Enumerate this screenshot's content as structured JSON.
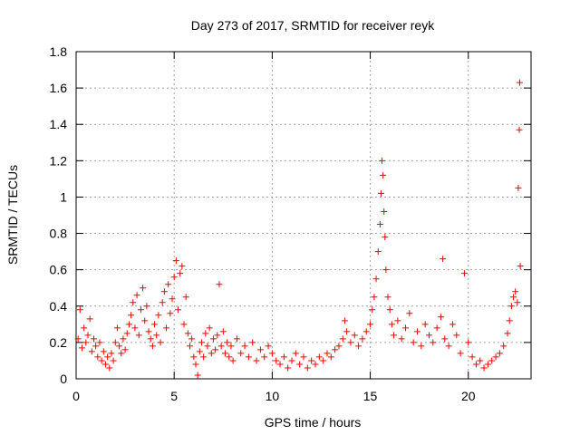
{
  "chart_data": {
    "type": "scatter",
    "title": "Day 273 of 2017, SRMTID for receiver reyk",
    "xlabel": "GPS time / hours",
    "ylabel": "SRMTID / TECUs",
    "xlim": [
      0,
      23.2
    ],
    "ylim": [
      0,
      1.8
    ],
    "x_ticks": [
      0,
      5,
      10,
      15,
      20
    ],
    "y_ticks": [
      0,
      0.2,
      0.4,
      0.6,
      0.8,
      1,
      1.2,
      1.4,
      1.6,
      1.8
    ],
    "x_tick_labels": [
      "0",
      "5",
      "10",
      "15",
      "20"
    ],
    "y_tick_labels": [
      "0",
      "0.2",
      "0.4",
      "0.6",
      "0.8",
      "1",
      "1.2",
      "1.4",
      "1.6",
      "1.8"
    ],
    "grid": true,
    "marker": "+",
    "marker_color": "#ff0000",
    "series": [
      {
        "name": "reyk",
        "points": [
          [
            0.1,
            0.22
          ],
          [
            0.2,
            0.38
          ],
          [
            0.3,
            0.17
          ],
          [
            0.4,
            0.28
          ],
          [
            0.5,
            0.2
          ],
          [
            0.6,
            0.24
          ],
          [
            0.7,
            0.33
          ],
          [
            0.8,
            0.15
          ],
          [
            0.9,
            0.22
          ],
          [
            1.0,
            0.18
          ],
          [
            1.1,
            0.12
          ],
          [
            1.2,
            0.2
          ],
          [
            1.3,
            0.1
          ],
          [
            1.4,
            0.15
          ],
          [
            1.5,
            0.08
          ],
          [
            1.6,
            0.12
          ],
          [
            1.7,
            0.06
          ],
          [
            1.8,
            0.14
          ],
          [
            1.9,
            0.1
          ],
          [
            2.0,
            0.2
          ],
          [
            2.1,
            0.28
          ],
          [
            2.2,
            0.18
          ],
          [
            2.3,
            0.14
          ],
          [
            2.4,
            0.22
          ],
          [
            2.5,
            0.16
          ],
          [
            2.6,
            0.25
          ],
          [
            2.7,
            0.3
          ],
          [
            2.8,
            0.35
          ],
          [
            2.9,
            0.42
          ],
          [
            3.0,
            0.28
          ],
          [
            3.1,
            0.46
          ],
          [
            3.2,
            0.24
          ],
          [
            3.3,
            0.38
          ],
          [
            3.4,
            0.5
          ],
          [
            3.5,
            0.32
          ],
          [
            3.6,
            0.4
          ],
          [
            3.7,
            0.26
          ],
          [
            3.8,
            0.22
          ],
          [
            3.9,
            0.18
          ],
          [
            4.0,
            0.3
          ],
          [
            4.1,
            0.24
          ],
          [
            4.2,
            0.35
          ],
          [
            4.3,
            0.2
          ],
          [
            4.4,
            0.42
          ],
          [
            4.5,
            0.48
          ],
          [
            4.6,
            0.28
          ],
          [
            4.7,
            0.52
          ],
          [
            4.8,
            0.36
          ],
          [
            4.9,
            0.44
          ],
          [
            5.0,
            0.56
          ],
          [
            5.1,
            0.65
          ],
          [
            5.2,
            0.38
          ],
          [
            5.3,
            0.58
          ],
          [
            5.4,
            0.62
          ],
          [
            5.5,
            0.3
          ],
          [
            5.6,
            0.45
          ],
          [
            5.7,
            0.25
          ],
          [
            5.8,
            0.18
          ],
          [
            5.9,
            0.22
          ],
          [
            6.0,
            0.12
          ],
          [
            6.1,
            0.08
          ],
          [
            6.2,
            0.02
          ],
          [
            6.3,
            0.15
          ],
          [
            6.4,
            0.2
          ],
          [
            6.5,
            0.12
          ],
          [
            6.6,
            0.25
          ],
          [
            6.7,
            0.18
          ],
          [
            6.8,
            0.28
          ],
          [
            6.9,
            0.14
          ],
          [
            7.0,
            0.22
          ],
          [
            7.1,
            0.16
          ],
          [
            7.2,
            0.24
          ],
          [
            7.3,
            0.52
          ],
          [
            7.4,
            0.18
          ],
          [
            7.5,
            0.26
          ],
          [
            7.6,
            0.14
          ],
          [
            7.7,
            0.2
          ],
          [
            7.8,
            0.12
          ],
          [
            7.9,
            0.18
          ],
          [
            8.0,
            0.1
          ],
          [
            8.2,
            0.22
          ],
          [
            8.4,
            0.14
          ],
          [
            8.6,
            0.18
          ],
          [
            8.8,
            0.12
          ],
          [
            9.0,
            0.2
          ],
          [
            9.2,
            0.1
          ],
          [
            9.4,
            0.16
          ],
          [
            9.6,
            0.12
          ],
          [
            9.8,
            0.18
          ],
          [
            10.0,
            0.14
          ],
          [
            10.2,
            0.1
          ],
          [
            10.4,
            0.08
          ],
          [
            10.6,
            0.12
          ],
          [
            10.8,
            0.06
          ],
          [
            11.0,
            0.1
          ],
          [
            11.2,
            0.14
          ],
          [
            11.4,
            0.08
          ],
          [
            11.6,
            0.12
          ],
          [
            11.8,
            0.06
          ],
          [
            12.0,
            0.1
          ],
          [
            12.2,
            0.08
          ],
          [
            12.4,
            0.12
          ],
          [
            12.6,
            0.1
          ],
          [
            12.8,
            0.14
          ],
          [
            13.0,
            0.12
          ],
          [
            13.2,
            0.16
          ],
          [
            13.4,
            0.18
          ],
          [
            13.6,
            0.22
          ],
          [
            13.7,
            0.32
          ],
          [
            13.8,
            0.26
          ],
          [
            14.0,
            0.2
          ],
          [
            14.2,
            0.24
          ],
          [
            14.4,
            0.18
          ],
          [
            14.6,
            0.22
          ],
          [
            14.8,
            0.26
          ],
          [
            15.0,
            0.3
          ],
          [
            15.1,
            0.38
          ],
          [
            15.2,
            0.45
          ],
          [
            15.3,
            0.55
          ],
          [
            15.4,
            0.7
          ],
          [
            15.5,
            0.85
          ],
          [
            15.55,
            1.02
          ],
          [
            15.6,
            1.2
          ],
          [
            15.65,
            1.12
          ],
          [
            15.7,
            0.92
          ],
          [
            15.75,
            0.78
          ],
          [
            15.8,
            0.6
          ],
          [
            15.9,
            0.45
          ],
          [
            16.0,
            0.38
          ],
          [
            16.1,
            0.3
          ],
          [
            16.2,
            0.24
          ],
          [
            16.4,
            0.32
          ],
          [
            16.6,
            0.22
          ],
          [
            16.8,
            0.28
          ],
          [
            17.0,
            0.36
          ],
          [
            17.2,
            0.2
          ],
          [
            17.4,
            0.26
          ],
          [
            17.6,
            0.18
          ],
          [
            17.8,
            0.3
          ],
          [
            18.0,
            0.24
          ],
          [
            18.2,
            0.2
          ],
          [
            18.4,
            0.28
          ],
          [
            18.6,
            0.34
          ],
          [
            18.7,
            0.66
          ],
          [
            18.8,
            0.22
          ],
          [
            19.0,
            0.18
          ],
          [
            19.2,
            0.3
          ],
          [
            19.4,
            0.24
          ],
          [
            19.6,
            0.14
          ],
          [
            19.8,
            0.58
          ],
          [
            20.0,
            0.2
          ],
          [
            20.2,
            0.12
          ],
          [
            20.4,
            0.08
          ],
          [
            20.6,
            0.1
          ],
          [
            20.8,
            0.06
          ],
          [
            21.0,
            0.08
          ],
          [
            21.2,
            0.1
          ],
          [
            21.4,
            0.12
          ],
          [
            21.6,
            0.14
          ],
          [
            21.8,
            0.18
          ],
          [
            22.0,
            0.25
          ],
          [
            22.1,
            0.32
          ],
          [
            22.2,
            0.4
          ],
          [
            22.3,
            0.45
          ],
          [
            22.4,
            0.48
          ],
          [
            22.5,
            0.42
          ],
          [
            22.55,
            1.05
          ],
          [
            22.6,
            1.37
          ],
          [
            22.62,
            1.63
          ],
          [
            22.65,
            0.62
          ]
        ]
      }
    ]
  }
}
